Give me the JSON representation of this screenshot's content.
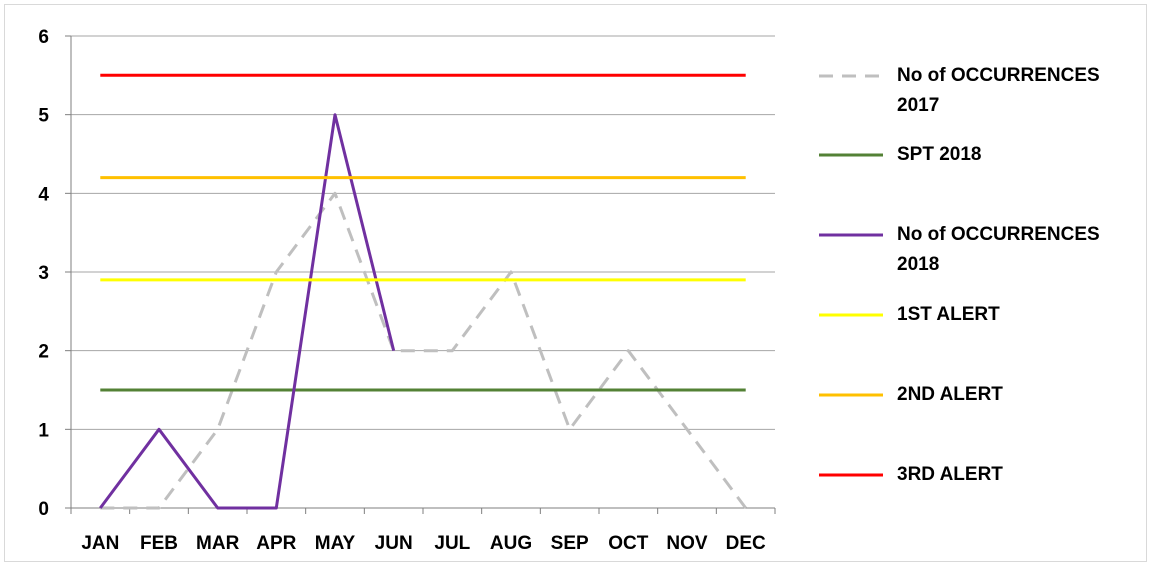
{
  "chart_data": {
    "type": "line",
    "categories": [
      "JAN",
      "FEB",
      "MAR",
      "APR",
      "MAY",
      "JUN",
      "JUL",
      "AUG",
      "SEP",
      "OCT",
      "NOV",
      "DEC"
    ],
    "ylim": [
      0,
      6
    ],
    "yticks": [
      "0",
      "1",
      "2",
      "3",
      "4",
      "5",
      "6"
    ],
    "grid": true,
    "legend_position": "right",
    "series": [
      {
        "name": "No of OCCURRENCES 2017",
        "color": "#bfbfbf",
        "dash": true,
        "values": [
          0,
          0,
          1,
          3,
          4,
          2,
          2,
          3,
          1,
          2,
          1,
          0
        ]
      },
      {
        "name": "SPT 2018",
        "color": "#538135",
        "dash": false,
        "values": [
          1.5,
          1.5,
          1.5,
          1.5,
          1.5,
          1.5,
          1.5,
          1.5,
          1.5,
          1.5,
          1.5,
          1.5
        ]
      },
      {
        "name": "No of OCCURRENCES 2018",
        "color": "#7030a0",
        "dash": false,
        "values": [
          0,
          1,
          0,
          0,
          5,
          2,
          null,
          null,
          null,
          null,
          null,
          null
        ]
      },
      {
        "name": "1ST ALERT",
        "color": "#ffff00",
        "dash": false,
        "values": [
          2.9,
          2.9,
          2.9,
          2.9,
          2.9,
          2.9,
          2.9,
          2.9,
          2.9,
          2.9,
          2.9,
          2.9
        ]
      },
      {
        "name": "2ND ALERT",
        "color": "#ffc000",
        "dash": false,
        "values": [
          4.2,
          4.2,
          4.2,
          4.2,
          4.2,
          4.2,
          4.2,
          4.2,
          4.2,
          4.2,
          4.2,
          4.2
        ]
      },
      {
        "name": "3RD ALERT",
        "color": "#ff0000",
        "dash": false,
        "values": [
          5.5,
          5.5,
          5.5,
          5.5,
          5.5,
          5.5,
          5.5,
          5.5,
          5.5,
          5.5,
          5.5,
          5.5
        ]
      }
    ],
    "legend_order": [
      "No of OCCURRENCES 2017",
      "SPT 2018",
      "No of OCCURRENCES 2018",
      "1ST ALERT",
      "2ND ALERT",
      "3RD ALERT"
    ]
  }
}
